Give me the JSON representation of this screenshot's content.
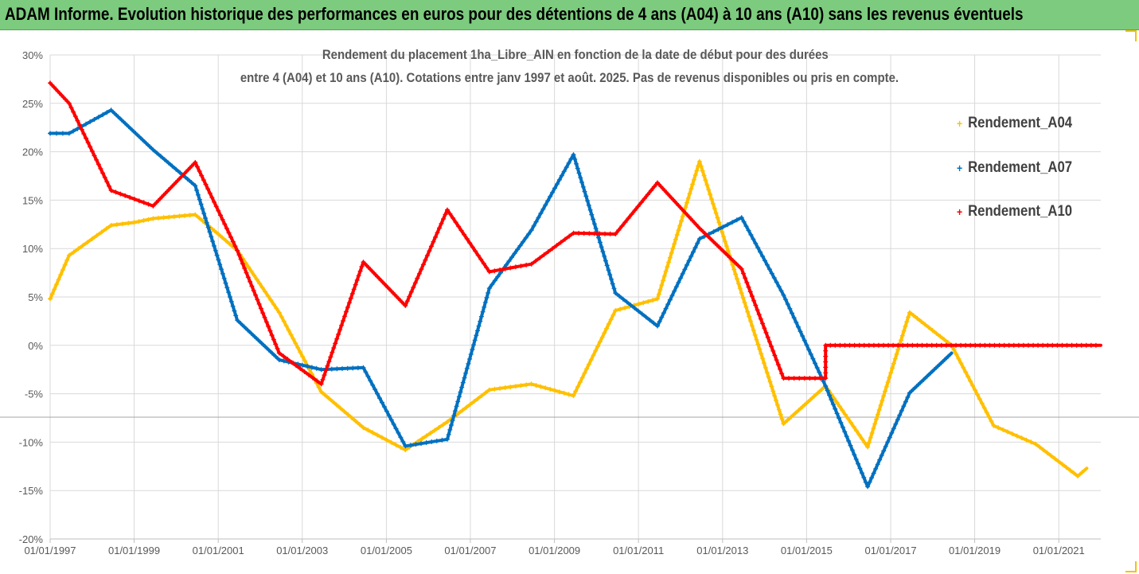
{
  "banner": {
    "title": "ADAM Informe. Evolution historique des performances en euros pour des détentions de 4 ans (A04) à 10 ans (A10) sans les revenus éventuels"
  },
  "chart_data": {
    "type": "line",
    "title_line1": "Rendement du placement 1ha_Libre_AIN en fonction de la date de début pour des durées",
    "title_line2": "entre 4 (A04) et 10 ans (A10). Cotations entre janv 1997 et août. 2025. Pas de revenus disponibles ou pris en compte.",
    "ylim": [
      -20,
      30
    ],
    "yticks": [
      30,
      25,
      20,
      15,
      10,
      5,
      0,
      -5,
      -10,
      -15,
      -20
    ],
    "ytick_labels": [
      "30%",
      "25%",
      "20%",
      "15%",
      "10%",
      "5%",
      "0%",
      "-5%",
      "-10%",
      "-15%",
      "-20%"
    ],
    "xlim": [
      "1997-01-01",
      "2022-01-01"
    ],
    "xticks": [
      "1997-01-01",
      "1999-01-01",
      "2001-01-01",
      "2003-01-01",
      "2005-01-01",
      "2007-01-01",
      "2009-01-01",
      "2011-01-01",
      "2013-01-01",
      "2015-01-01",
      "2017-01-01",
      "2019-01-01",
      "2021-01-01"
    ],
    "xtick_labels": [
      "01/01/1997",
      "01/01/1999",
      "01/01/2001",
      "01/01/2003",
      "01/01/2005",
      "01/01/2007",
      "01/01/2009",
      "01/01/2011",
      "01/01/2013",
      "01/01/2015",
      "01/01/2017",
      "01/01/2019",
      "01/01/2021"
    ],
    "grid": true,
    "legend_position": "right",
    "series": [
      {
        "name": "Rendement_A04",
        "color": "#ffc000",
        "points": [
          [
            "1997-01-01",
            4.8
          ],
          [
            "1997-06-15",
            9.3
          ],
          [
            "1998-01-01",
            11.0
          ],
          [
            "1998-06-15",
            12.4
          ],
          [
            "1999-01-01",
            12.7
          ],
          [
            "1999-06-15",
            13.1
          ],
          [
            "2000-06-15",
            13.5
          ],
          [
            "2001-01-01",
            11.5
          ],
          [
            "2001-06-15",
            9.8
          ],
          [
            "2002-06-15",
            3.4
          ],
          [
            "2003-06-15",
            -4.8
          ],
          [
            "2004-06-15",
            -8.5
          ],
          [
            "2005-06-15",
            -10.8
          ],
          [
            "2006-06-15",
            -7.9
          ],
          [
            "2007-06-15",
            -4.6
          ],
          [
            "2008-06-15",
            -4.0
          ],
          [
            "2009-06-15",
            -5.2
          ],
          [
            "2010-06-15",
            3.6
          ],
          [
            "2011-06-15",
            4.8
          ],
          [
            "2012-06-15",
            19.0
          ],
          [
            "2013-06-15",
            5.4
          ],
          [
            "2014-06-15",
            -8.1
          ],
          [
            "2015-06-15",
            -4.2
          ],
          [
            "2016-06-15",
            -10.5
          ],
          [
            "2017-06-15",
            3.4
          ],
          [
            "2018-06-15",
            0.0
          ],
          [
            "2019-06-15",
            -8.3
          ],
          [
            "2020-06-15",
            -10.2
          ],
          [
            "2021-06-15",
            -13.5
          ],
          [
            "2021-09-01",
            -12.7
          ]
        ]
      },
      {
        "name": "Rendement_A07",
        "color": "#0070c0",
        "points": [
          [
            "1997-01-01",
            21.9
          ],
          [
            "1997-06-15",
            21.9
          ],
          [
            "1998-06-15",
            24.3
          ],
          [
            "1999-06-15",
            20.2
          ],
          [
            "2000-06-15",
            16.5
          ],
          [
            "2001-06-15",
            2.6
          ],
          [
            "2002-06-15",
            -1.5
          ],
          [
            "2003-06-15",
            -2.5
          ],
          [
            "2004-06-15",
            -2.3
          ],
          [
            "2005-06-15",
            -10.4
          ],
          [
            "2006-06-15",
            -9.7
          ],
          [
            "2007-06-15",
            5.9
          ],
          [
            "2008-06-15",
            11.9
          ],
          [
            "2009-06-15",
            19.7
          ],
          [
            "2010-06-15",
            5.4
          ],
          [
            "2011-06-15",
            2.0
          ],
          [
            "2012-06-15",
            11.0
          ],
          [
            "2013-06-15",
            13.2
          ],
          [
            "2014-06-15",
            5.2
          ],
          [
            "2015-06-15",
            -4.2
          ],
          [
            "2016-06-15",
            -14.6
          ],
          [
            "2017-06-15",
            -4.9
          ],
          [
            "2018-06-15",
            -0.8
          ]
        ]
      },
      {
        "name": "Rendement_A10",
        "color": "#ff0000",
        "points": [
          [
            "1997-01-01",
            27.1
          ],
          [
            "1997-06-15",
            25.0
          ],
          [
            "1998-06-15",
            16.0
          ],
          [
            "1999-06-15",
            14.4
          ],
          [
            "2000-06-15",
            18.9
          ],
          [
            "2001-06-15",
            9.8
          ],
          [
            "2002-06-15",
            -0.8
          ],
          [
            "2003-06-15",
            -4.0
          ],
          [
            "2004-06-15",
            8.6
          ],
          [
            "2005-06-15",
            4.1
          ],
          [
            "2006-06-15",
            14.0
          ],
          [
            "2007-06-15",
            7.6
          ],
          [
            "2008-06-15",
            8.4
          ],
          [
            "2009-06-15",
            11.6
          ],
          [
            "2010-06-15",
            11.5
          ],
          [
            "2011-06-15",
            16.8
          ],
          [
            "2012-06-15",
            12.1
          ],
          [
            "2013-06-15",
            7.9
          ],
          [
            "2014-06-15",
            -3.4
          ],
          [
            "2015-06-15",
            -3.4
          ],
          [
            "2015-06-15",
            0.0
          ],
          [
            "2022-01-01",
            0.0
          ]
        ]
      }
    ]
  }
}
